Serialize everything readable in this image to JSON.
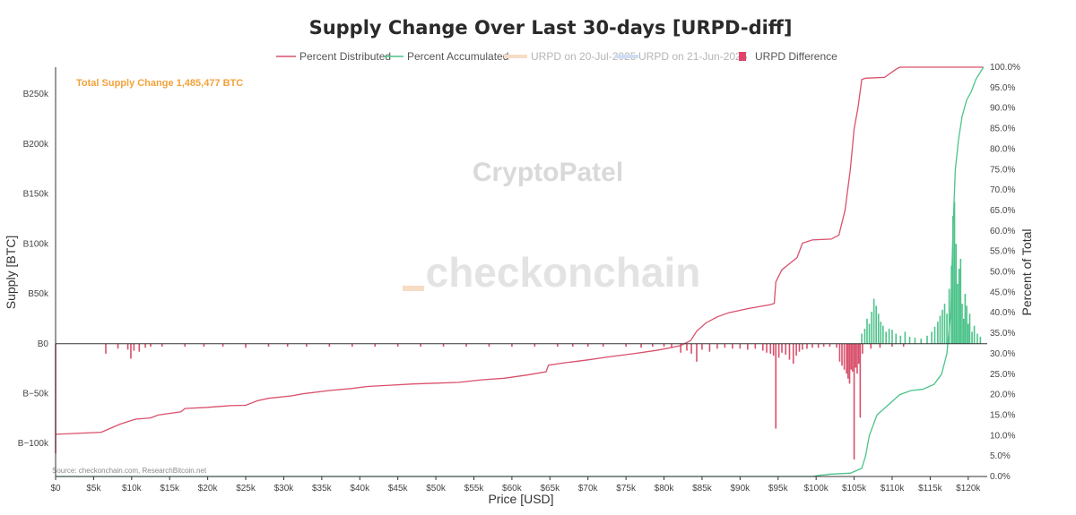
{
  "chart_data": {
    "type": "bar",
    "title": "Supply Change Over Last 30-days [URPD-diff]",
    "xlabel": "Price [USD]",
    "ylabel": "Supply [BTC]",
    "y2label": "Percent of Total",
    "xlim": [
      0,
      122500
    ],
    "ylim": [
      -133000,
      277000
    ],
    "y2lim": [
      0,
      100
    ],
    "x_ticks": [
      "$0",
      "$5k",
      "$10k",
      "$15k",
      "$20k",
      "$25k",
      "$30k",
      "$35k",
      "$40k",
      "$45k",
      "$50k",
      "$55k",
      "$60k",
      "$65k",
      "$70k",
      "$75k",
      "$80k",
      "$85k",
      "$90k",
      "$95k",
      "$100k",
      "$105k",
      "$110k",
      "$115k",
      "$120k"
    ],
    "y_ticks": [
      "B0",
      "B50k",
      "B100k",
      "B150k",
      "B200k",
      "B250k",
      "B−50k",
      "B−100k"
    ],
    "y_tick_values": [
      0,
      50000,
      100000,
      150000,
      200000,
      250000,
      -50000,
      -100000
    ],
    "y2_ticks": [
      "0.0%",
      "5.0%",
      "10.0%",
      "15.0%",
      "20.0%",
      "25.0%",
      "30.0%",
      "35.0%",
      "40.0%",
      "45.0%",
      "50.0%",
      "55.0%",
      "60.0%",
      "65.0%",
      "70.0%",
      "75.0%",
      "80.0%",
      "85.0%",
      "90.0%",
      "95.0%",
      "100.0%"
    ],
    "legend": [
      {
        "label": "Percent Distributed",
        "color": "#d9506b",
        "marker": "line",
        "dimmed": false
      },
      {
        "label": "Percent Accumulated",
        "color": "#4cc38a",
        "marker": "line",
        "dimmed": false
      },
      {
        "label": "URPD on 20-Jul-2025",
        "color": "#f7dcc4",
        "marker": "line",
        "dimmed": true
      },
      {
        "label": "URPD on 21-Jun-2025",
        "color": "#cfdcf3",
        "marker": "line",
        "dimmed": true
      },
      {
        "label": "URPD Difference",
        "color": "#e0446a",
        "marker": "square",
        "dimmed": false
      }
    ],
    "legend_placement": "top-center",
    "colors": {
      "negative": "#d9506b",
      "positive": "#4cc38a"
    },
    "annotation": "Total Supply Change 1,485,477 BTC",
    "watermarks": [
      "CryptoPatel",
      "checkonchain"
    ],
    "source": "Source: checkonchain.com, ResearchBitcoin.net",
    "series": [
      {
        "name": "URPD Difference",
        "axis": "y",
        "type": "bar",
        "points": [
          [
            0,
            -110000
          ],
          [
            6600,
            -10000
          ],
          [
            8200,
            -5000
          ],
          [
            9500,
            -6000
          ],
          [
            9900,
            -15000
          ],
          [
            10300,
            -7000
          ],
          [
            11000,
            -8000
          ],
          [
            11800,
            -4000
          ],
          [
            12500,
            -3000
          ],
          [
            14000,
            -3000
          ],
          [
            17000,
            -3000
          ],
          [
            19500,
            -3000
          ],
          [
            22000,
            -3000
          ],
          [
            25000,
            -4000
          ],
          [
            28000,
            -3000
          ],
          [
            30500,
            -3000
          ],
          [
            33000,
            -3000
          ],
          [
            36000,
            -3000
          ],
          [
            39000,
            -3000
          ],
          [
            42000,
            -3000
          ],
          [
            45000,
            -3000
          ],
          [
            48000,
            -3000
          ],
          [
            51000,
            -3000
          ],
          [
            54000,
            -3000
          ],
          [
            57000,
            -3000
          ],
          [
            60000,
            -3000
          ],
          [
            63000,
            -3000
          ],
          [
            66000,
            -3000
          ],
          [
            68000,
            -3000
          ],
          [
            70000,
            -3000
          ],
          [
            72000,
            -3000
          ],
          [
            75000,
            -3000
          ],
          [
            77000,
            -4000
          ],
          [
            78500,
            -3000
          ],
          [
            80000,
            -3000
          ],
          [
            81000,
            -4000
          ],
          [
            82200,
            -9000
          ],
          [
            83000,
            -7000
          ],
          [
            83600,
            -10000
          ],
          [
            84300,
            -18000
          ],
          [
            85000,
            -6000
          ],
          [
            86000,
            -8000
          ],
          [
            87000,
            -5000
          ],
          [
            88000,
            -4000
          ],
          [
            89000,
            -5000
          ],
          [
            90000,
            -5000
          ],
          [
            91000,
            -6000
          ],
          [
            92000,
            -5000
          ],
          [
            93000,
            -7000
          ],
          [
            93500,
            -9000
          ],
          [
            94000,
            -10000
          ],
          [
            94400,
            -12000
          ],
          [
            94700,
            -85000
          ],
          [
            95100,
            -14000
          ],
          [
            95500,
            -9000
          ],
          [
            96000,
            -11000
          ],
          [
            96500,
            -16000
          ],
          [
            97000,
            -20000
          ],
          [
            97400,
            -12000
          ],
          [
            97800,
            -8000
          ],
          [
            98200,
            -6000
          ],
          [
            98800,
            -5000
          ],
          [
            99500,
            -4000
          ],
          [
            100300,
            -4000
          ],
          [
            101000,
            -3000
          ],
          [
            101800,
            -3000
          ],
          [
            102700,
            -4000
          ],
          [
            103100,
            -18000
          ],
          [
            103400,
            -22000
          ],
          [
            103700,
            -26000
          ],
          [
            104000,
            -30000
          ],
          [
            104200,
            -35000
          ],
          [
            104400,
            -40000
          ],
          [
            104600,
            -26000
          ],
          [
            104800,
            -28000
          ],
          [
            105000,
            -116000
          ],
          [
            105200,
            -24000
          ],
          [
            105400,
            -30000
          ],
          [
            105600,
            -20000
          ],
          [
            105800,
            -74000
          ],
          [
            106100,
            -10000
          ],
          [
            107200,
            -5000
          ],
          [
            108400,
            -4000
          ],
          [
            110000,
            -3000
          ],
          [
            111500,
            -3000
          ],
          [
            106000,
            10000
          ],
          [
            106400,
            15000
          ],
          [
            106700,
            25000
          ],
          [
            107000,
            20000
          ],
          [
            107300,
            32000
          ],
          [
            107600,
            45000
          ],
          [
            107900,
            38000
          ],
          [
            108200,
            30000
          ],
          [
            108500,
            22000
          ],
          [
            108800,
            18000
          ],
          [
            109200,
            12000
          ],
          [
            109600,
            15000
          ],
          [
            110000,
            14000
          ],
          [
            110500,
            10000
          ],
          [
            111100,
            8000
          ],
          [
            111700,
            12000
          ],
          [
            112300,
            7000
          ],
          [
            113000,
            6000
          ],
          [
            113800,
            5000
          ],
          [
            114600,
            8000
          ],
          [
            115200,
            12000
          ],
          [
            115600,
            17000
          ],
          [
            116000,
            22000
          ],
          [
            116300,
            28000
          ],
          [
            116600,
            34000
          ],
          [
            116900,
            40000
          ],
          [
            117200,
            30000
          ],
          [
            117500,
            55000
          ],
          [
            117800,
            78000
          ],
          [
            118000,
            128000
          ],
          [
            118200,
            142000
          ],
          [
            118400,
            100000
          ],
          [
            118600,
            60000
          ],
          [
            118800,
            75000
          ],
          [
            119000,
            85000
          ],
          [
            119200,
            40000
          ],
          [
            119400,
            25000
          ],
          [
            119600,
            50000
          ],
          [
            119800,
            38000
          ],
          [
            120000,
            20000
          ],
          [
            120200,
            30000
          ],
          [
            120500,
            12000
          ],
          [
            120800,
            18000
          ],
          [
            121200,
            10000
          ],
          [
            121600,
            7000
          ]
        ]
      },
      {
        "name": "Percent Distributed",
        "axis": "y2",
        "type": "line",
        "points": [
          [
            0,
            10.3
          ],
          [
            6000,
            10.8
          ],
          [
            8500,
            12.8
          ],
          [
            10500,
            14.0
          ],
          [
            12500,
            14.3
          ],
          [
            13500,
            15.0
          ],
          [
            16500,
            15.8
          ],
          [
            17000,
            16.6
          ],
          [
            20000,
            16.9
          ],
          [
            23000,
            17.3
          ],
          [
            25000,
            17.4
          ],
          [
            26500,
            18.5
          ],
          [
            28000,
            19.1
          ],
          [
            31000,
            19.7
          ],
          [
            32500,
            20.2
          ],
          [
            36000,
            21.0
          ],
          [
            39000,
            21.5
          ],
          [
            41000,
            22.0
          ],
          [
            44000,
            22.3
          ],
          [
            47000,
            22.6
          ],
          [
            50000,
            22.8
          ],
          [
            53000,
            23.0
          ],
          [
            56000,
            23.6
          ],
          [
            59000,
            24.0
          ],
          [
            62000,
            24.8
          ],
          [
            64500,
            25.6
          ],
          [
            64800,
            27.2
          ],
          [
            67000,
            27.8
          ],
          [
            70000,
            28.5
          ],
          [
            73000,
            29.3
          ],
          [
            76000,
            30.0
          ],
          [
            79000,
            30.8
          ],
          [
            81000,
            31.5
          ],
          [
            82200,
            32.0
          ],
          [
            83500,
            33.2
          ],
          [
            84300,
            35.5
          ],
          [
            85500,
            37.5
          ],
          [
            87000,
            39.0
          ],
          [
            88500,
            40.0
          ],
          [
            91000,
            41.0
          ],
          [
            94000,
            42.0
          ],
          [
            94500,
            42.3
          ],
          [
            94700,
            47.5
          ],
          [
            95500,
            50.5
          ],
          [
            96500,
            52.0
          ],
          [
            97500,
            53.5
          ],
          [
            98200,
            57.0
          ],
          [
            99500,
            57.8
          ],
          [
            102000,
            58.0
          ],
          [
            103000,
            59.0
          ],
          [
            103800,
            65.0
          ],
          [
            104500,
            75.0
          ],
          [
            105000,
            85.0
          ],
          [
            105500,
            90.0
          ],
          [
            106000,
            97.0
          ],
          [
            106500,
            97.3
          ],
          [
            109000,
            97.5
          ],
          [
            110500,
            99.5
          ],
          [
            111000,
            100
          ],
          [
            122000,
            100
          ]
        ]
      },
      {
        "name": "Percent Accumulated",
        "axis": "y2",
        "type": "line",
        "points": [
          [
            0,
            0
          ],
          [
            99500,
            0
          ],
          [
            100500,
            0.3
          ],
          [
            102000,
            0.6
          ],
          [
            104500,
            0.8
          ],
          [
            106000,
            2.0
          ],
          [
            106500,
            5.0
          ],
          [
            107000,
            10.0
          ],
          [
            108000,
            15.0
          ],
          [
            109500,
            17.5
          ],
          [
            111000,
            20.0
          ],
          [
            112500,
            21.0
          ],
          [
            114000,
            21.3
          ],
          [
            115500,
            22.5
          ],
          [
            116500,
            25.0
          ],
          [
            117200,
            30.0
          ],
          [
            117700,
            40.0
          ],
          [
            118000,
            60.0
          ],
          [
            118300,
            75.0
          ],
          [
            118700,
            82.0
          ],
          [
            119200,
            88.0
          ],
          [
            119800,
            92.0
          ],
          [
            120400,
            94.0
          ],
          [
            121000,
            97.0
          ],
          [
            122000,
            100
          ]
        ]
      }
    ]
  }
}
